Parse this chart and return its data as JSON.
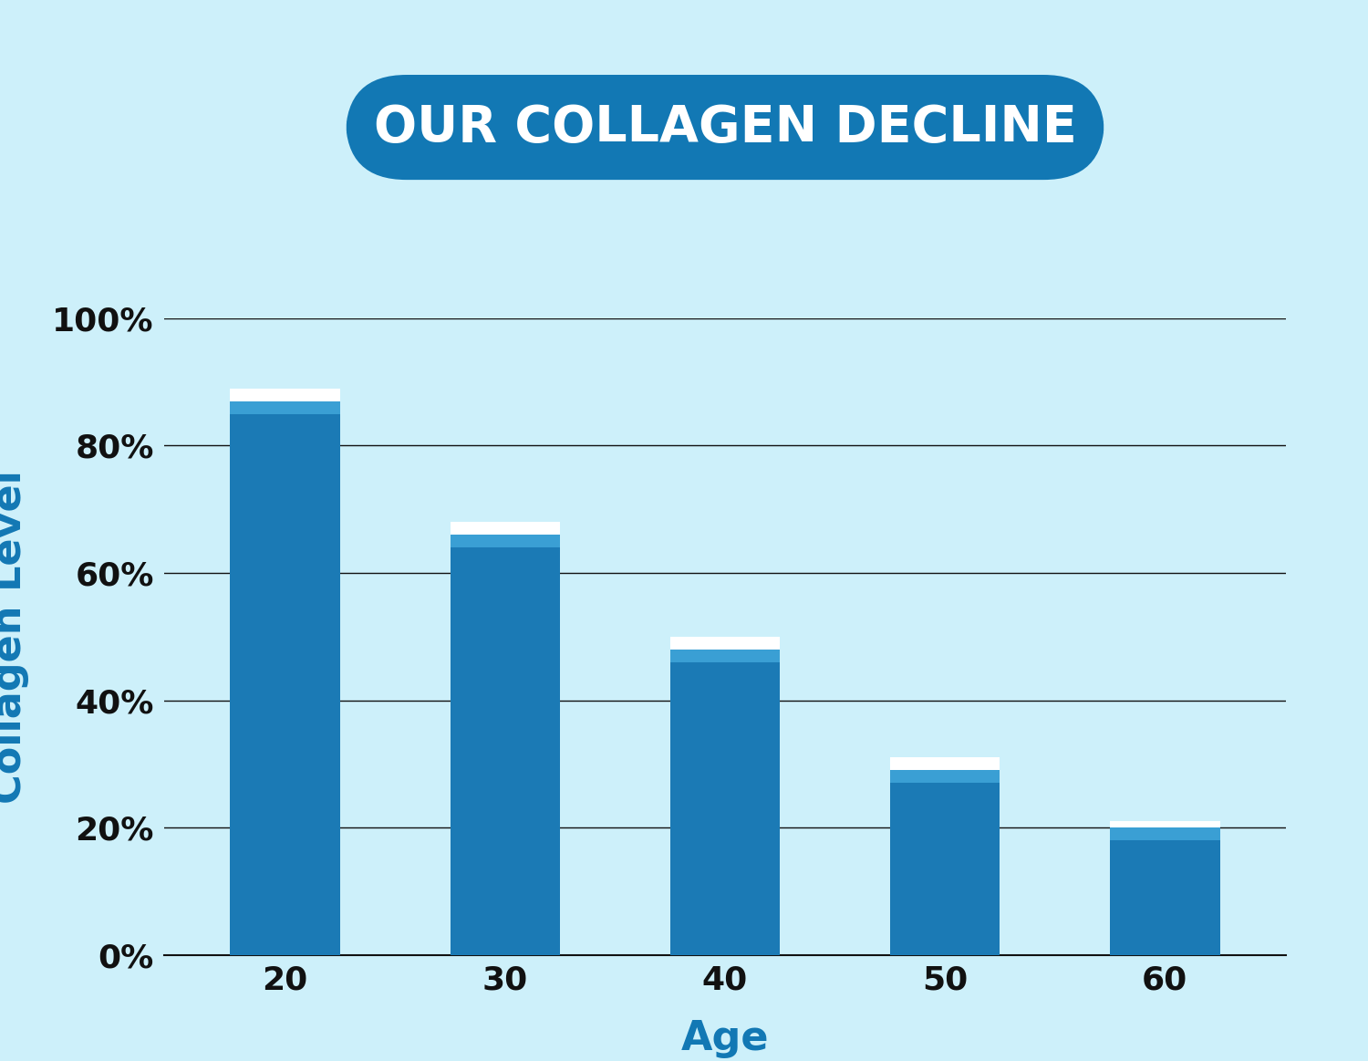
{
  "title": "OUR COLLAGEN DECLINE",
  "xlabel": "Age",
  "ylabel": "Collagen Level",
  "categories": [
    "20",
    "30",
    "40",
    "50",
    "60"
  ],
  "bar_values": [
    85,
    64,
    46,
    27,
    18
  ],
  "mid_values": [
    87,
    66,
    48,
    29,
    20
  ],
  "highlight_values": [
    89,
    68,
    50,
    31,
    21
  ],
  "bar_color": "#1b7ab5",
  "mid_color": "#3a9fd4",
  "highlight_color": "#ffffff",
  "background_color": "#cdf0fa",
  "plot_bg_color": "#cdf0fa",
  "title_bg_color": "#1278b4",
  "title_text_color": "#ffffff",
  "axis_label_color": "#1278b4",
  "tick_label_color": "#111111",
  "grid_color": "#111111",
  "ylim": [
    0,
    100
  ],
  "yticks": [
    0,
    20,
    40,
    60,
    80,
    100
  ],
  "ytick_labels": [
    "0%",
    "20%",
    "40%",
    "60%",
    "80%",
    "100%"
  ],
  "title_fontsize": 40,
  "axis_label_fontsize": 32,
  "tick_fontsize": 26,
  "bar_width": 0.5
}
